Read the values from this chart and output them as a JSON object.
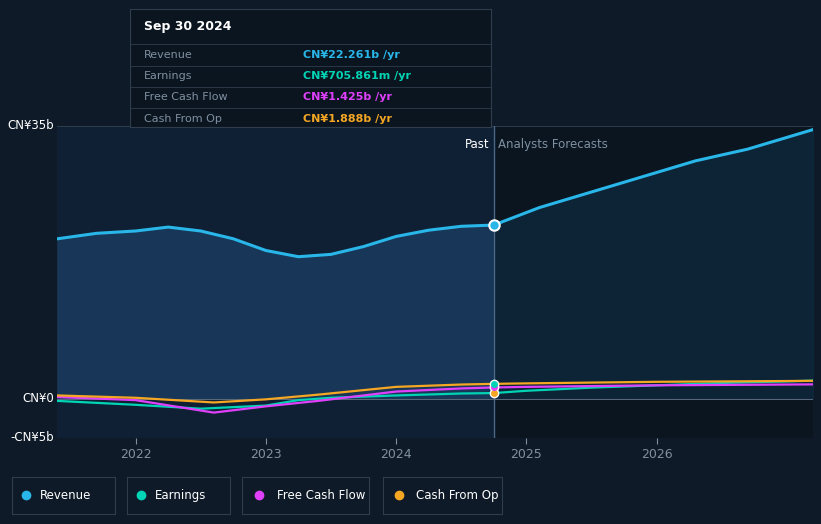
{
  "bg_color": "#0e1a27",
  "plot_bg_past": "#0f2035",
  "plot_bg_fore": "#0a1520",
  "divider_x": 2024.75,
  "xlim": [
    2021.4,
    2027.2
  ],
  "ylim": [
    -5000000000.0,
    35000000000.0
  ],
  "x_ticks": [
    2022,
    2023,
    2024,
    2025,
    2026
  ],
  "revenue_color": "#29b6e8",
  "earnings_color": "#00d4b4",
  "fcf_color": "#e040fb",
  "cashop_color": "#f5a623",
  "fill_past_color": "#1a3a5c",
  "fill_fore_color": "#0f2a40",
  "tooltip_bg": "#0a1520",
  "tooltip_border": "#303d4d",
  "past_label": "Past",
  "forecast_label": "Analysts Forecasts",
  "tooltip_title": "Sep 30 2024",
  "tooltip_rows": [
    {
      "label": "Revenue",
      "value": "CN¥22.261b /yr",
      "color": "#29b6e8"
    },
    {
      "label": "Earnings",
      "value": "CN¥705.861m /yr",
      "color": "#00d4b4"
    },
    {
      "label": "Free Cash Flow",
      "value": "CN¥1.425b /yr",
      "color": "#e040fb"
    },
    {
      "label": "Cash From Op",
      "value": "CN¥1.888b /yr",
      "color": "#f5a623"
    }
  ],
  "revenue_past_x": [
    2021.4,
    2021.7,
    2022.0,
    2022.25,
    2022.5,
    2022.75,
    2023.0,
    2023.25,
    2023.5,
    2023.75,
    2024.0,
    2024.25,
    2024.5,
    2024.75
  ],
  "revenue_past_y": [
    20500000000.0,
    21200000000.0,
    21500000000.0,
    22000000000.0,
    21500000000.0,
    20500000000.0,
    19000000000.0,
    18200000000.0,
    18500000000.0,
    19500000000.0,
    20800000000.0,
    21600000000.0,
    22100000000.0,
    22261000000.0
  ],
  "revenue_fore_x": [
    2024.75,
    2025.1,
    2025.5,
    2025.9,
    2026.3,
    2026.7,
    2027.0,
    2027.2
  ],
  "revenue_fore_y": [
    22261000000.0,
    24500000000.0,
    26500000000.0,
    28500000000.0,
    30500000000.0,
    32000000000.0,
    33500000000.0,
    34500000000.0
  ],
  "earnings_past_x": [
    2021.4,
    2022.0,
    2022.5,
    2023.0,
    2023.25,
    2023.5,
    2024.0,
    2024.5,
    2024.75
  ],
  "earnings_past_y": [
    -300000000.0,
    -800000000.0,
    -1300000000.0,
    -900000000.0,
    -200000000.0,
    100000000.0,
    400000000.0,
    650000000.0,
    706000000.0
  ],
  "earnings_fore_x": [
    2024.75,
    2025.0,
    2025.5,
    2026.0,
    2026.5,
    2027.0,
    2027.2
  ],
  "earnings_fore_y": [
    706000000.0,
    1000000000.0,
    1400000000.0,
    1700000000.0,
    2000000000.0,
    2200000000.0,
    2300000000.0
  ],
  "fcf_past_x": [
    2021.4,
    2022.0,
    2022.3,
    2022.6,
    2023.0,
    2023.4,
    2023.7,
    2024.0,
    2024.5,
    2024.75
  ],
  "fcf_past_y": [
    200000000.0,
    -200000000.0,
    -1000000000.0,
    -1800000000.0,
    -1000000000.0,
    -300000000.0,
    300000000.0,
    900000000.0,
    1300000000.0,
    1425000000.0
  ],
  "fcf_fore_x": [
    2024.75,
    2025.0,
    2025.5,
    2026.0,
    2026.5,
    2027.0,
    2027.2
  ],
  "fcf_fore_y": [
    1425000000.0,
    1500000000.0,
    1600000000.0,
    1700000000.0,
    1750000000.0,
    1800000000.0,
    1820000000.0
  ],
  "cashop_past_x": [
    2021.4,
    2022.0,
    2022.3,
    2022.6,
    2023.0,
    2023.4,
    2023.7,
    2024.0,
    2024.5,
    2024.75
  ],
  "cashop_past_y": [
    400000000.0,
    100000000.0,
    -200000000.0,
    -500000000.0,
    -100000000.0,
    500000000.0,
    1000000000.0,
    1500000000.0,
    1800000000.0,
    1888000000.0
  ],
  "cashop_fore_x": [
    2024.75,
    2025.0,
    2025.5,
    2026.0,
    2026.5,
    2027.0,
    2027.2
  ],
  "cashop_fore_y": [
    1888000000.0,
    1950000000.0,
    2050000000.0,
    2150000000.0,
    2200000000.0,
    2250000000.0,
    2280000000.0
  ]
}
